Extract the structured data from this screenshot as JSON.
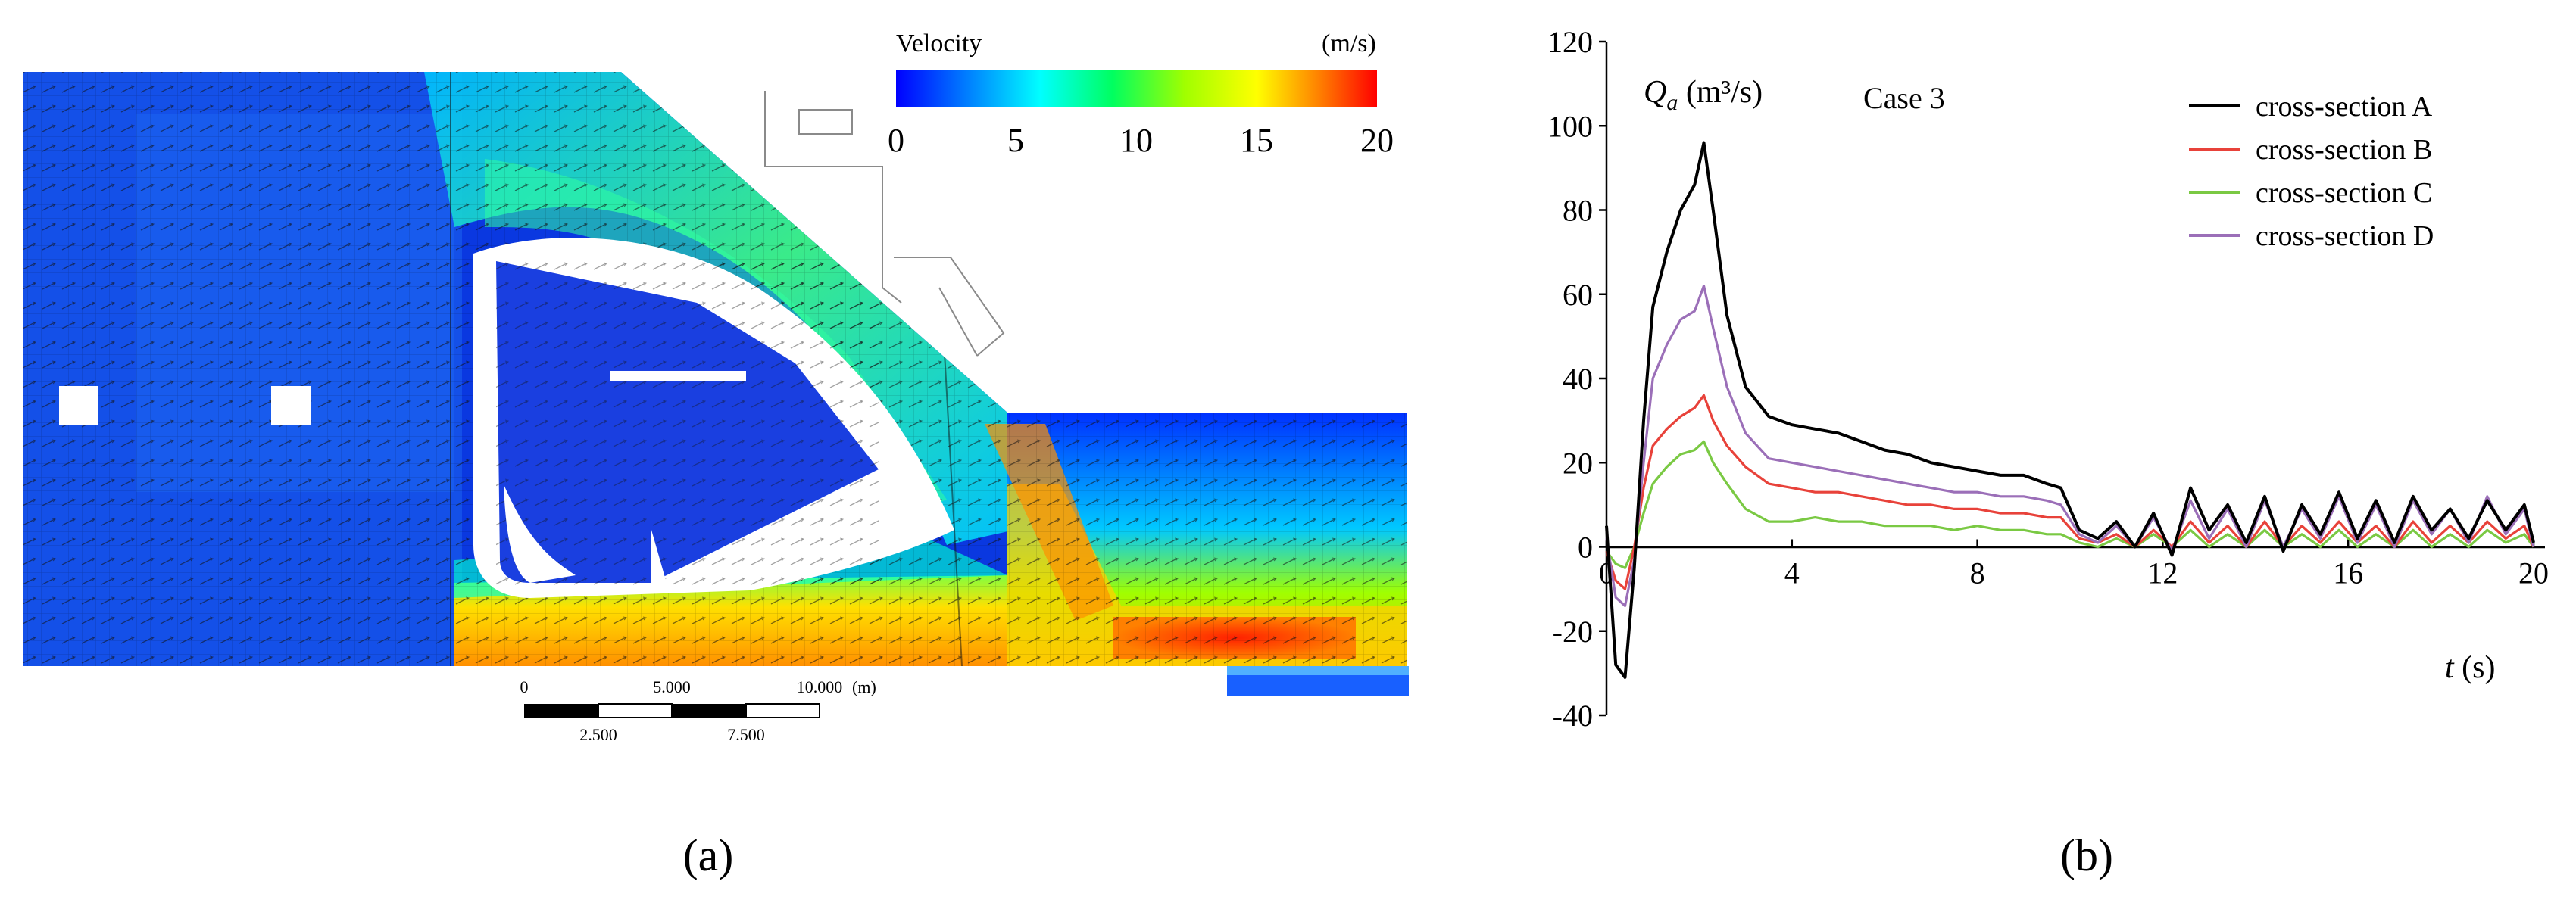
{
  "panel_a": {
    "label": "(a)",
    "colorbar": {
      "title": "Velocity",
      "unit": "(m/s)",
      "ticks": [
        "0",
        "5",
        "10",
        "15",
        "20"
      ],
      "range": [
        0,
        20
      ],
      "colors": [
        "#0000ff",
        "#00a0ff",
        "#00ffff",
        "#00ff60",
        "#a0ff00",
        "#ffff00",
        "#ff8000",
        "#ff0000"
      ]
    },
    "scalebar": {
      "top_labels": [
        "0",
        "5.000",
        "10.000",
        "(m)"
      ],
      "bottom_labels": [
        "2.500",
        "7.500"
      ]
    }
  },
  "panel_b": {
    "label": "(b)",
    "ylabel_text": "Q",
    "ylabel_sub": "a",
    "ylabel_unit": " (m³/s)",
    "case_label": "Case 3",
    "xlabel_text": "t",
    "xlabel_unit": " (s)"
  },
  "chart_data": {
    "type": "line",
    "xlim": [
      0,
      20
    ],
    "ylim": [
      -40,
      120
    ],
    "xticks": [
      0,
      4,
      8,
      12,
      16,
      20
    ],
    "yticks": [
      -40,
      -20,
      0,
      20,
      40,
      60,
      80,
      100,
      120
    ],
    "xlabel": "t (s)",
    "ylabel": "Qa (m³/s)",
    "annotation": "Case 3",
    "legend_position": "top-right",
    "grid": false,
    "series": [
      {
        "name": "cross-section A",
        "color": "#000000",
        "x": [
          0,
          0.2,
          0.4,
          0.6,
          0.8,
          1.0,
          1.3,
          1.6,
          1.9,
          2.1,
          2.3,
          2.6,
          3.0,
          3.5,
          4.0,
          4.5,
          5.0,
          5.5,
          6.0,
          6.5,
          7.0,
          7.5,
          8.0,
          8.5,
          9.0,
          9.5,
          9.8,
          10.2,
          10.6,
          11.0,
          11.4,
          11.8,
          12.2,
          12.6,
          13.0,
          13.4,
          13.8,
          14.2,
          14.6,
          15.0,
          15.4,
          15.8,
          16.2,
          16.6,
          17.0,
          17.4,
          17.8,
          18.2,
          18.6,
          19.0,
          19.4,
          19.8,
          20.0
        ],
        "y": [
          5,
          -28,
          -31,
          -5,
          30,
          57,
          70,
          80,
          86,
          96,
          80,
          55,
          38,
          31,
          29,
          28,
          27,
          25,
          23,
          22,
          20,
          19,
          18,
          17,
          17,
          15,
          14,
          4,
          2,
          6,
          0,
          8,
          -2,
          14,
          4,
          10,
          1,
          12,
          -1,
          10,
          3,
          13,
          2,
          11,
          1,
          12,
          4,
          9,
          2,
          11,
          4,
          10,
          1
        ]
      },
      {
        "name": "cross-section B",
        "color": "#e8423a",
        "x": [
          0,
          0.2,
          0.4,
          0.6,
          0.8,
          1.0,
          1.3,
          1.6,
          1.9,
          2.1,
          2.3,
          2.6,
          3.0,
          3.5,
          4.0,
          4.5,
          5.0,
          5.5,
          6.0,
          6.5,
          7.0,
          7.5,
          8.0,
          8.5,
          9.0,
          9.5,
          9.8,
          10.2,
          10.6,
          11.0,
          11.4,
          11.8,
          12.2,
          12.6,
          13.0,
          13.4,
          13.8,
          14.2,
          14.6,
          15.0,
          15.4,
          15.8,
          16.2,
          16.6,
          17.0,
          17.4,
          17.8,
          18.2,
          18.6,
          19.0,
          19.4,
          19.8,
          20.0
        ],
        "y": [
          -1,
          -8,
          -10,
          0,
          14,
          24,
          28,
          31,
          33,
          36,
          30,
          24,
          19,
          15,
          14,
          13,
          13,
          12,
          11,
          10,
          10,
          9,
          9,
          8,
          8,
          7,
          7,
          2,
          1,
          3,
          0,
          4,
          0,
          6,
          1,
          5,
          0,
          6,
          0,
          5,
          1,
          6,
          1,
          5,
          0,
          6,
          1,
          5,
          1,
          6,
          2,
          5,
          0
        ]
      },
      {
        "name": "cross-section C",
        "color": "#7ac943",
        "x": [
          0,
          0.2,
          0.4,
          0.6,
          0.8,
          1.0,
          1.3,
          1.6,
          1.9,
          2.1,
          2.3,
          2.6,
          3.0,
          3.5,
          4.0,
          4.5,
          5.0,
          5.5,
          6.0,
          6.5,
          7.0,
          7.5,
          8.0,
          8.5,
          9.0,
          9.5,
          9.8,
          10.2,
          10.6,
          11.0,
          11.4,
          11.8,
          12.2,
          12.6,
          13.0,
          13.4,
          13.8,
          14.2,
          14.6,
          15.0,
          15.4,
          15.8,
          16.2,
          16.6,
          17.0,
          17.4,
          17.8,
          18.2,
          18.6,
          19.0,
          19.4,
          19.8,
          20.0
        ],
        "y": [
          -1,
          -4,
          -5,
          0,
          8,
          15,
          19,
          22,
          23,
          25,
          20,
          15,
          9,
          6,
          6,
          7,
          6,
          6,
          5,
          5,
          5,
          4,
          5,
          4,
          4,
          3,
          3,
          1,
          0,
          2,
          0,
          3,
          0,
          4,
          0,
          3,
          0,
          4,
          0,
          3,
          0,
          4,
          0,
          3,
          0,
          4,
          0,
          3,
          0,
          4,
          1,
          3,
          0
        ]
      },
      {
        "name": "cross-section D",
        "color": "#9b6fb8",
        "x": [
          0,
          0.2,
          0.4,
          0.6,
          0.8,
          1.0,
          1.3,
          1.6,
          1.9,
          2.1,
          2.3,
          2.6,
          3.0,
          3.5,
          4.0,
          4.5,
          5.0,
          5.5,
          6.0,
          6.5,
          7.0,
          7.5,
          8.0,
          8.5,
          9.0,
          9.5,
          9.8,
          10.2,
          10.6,
          11.0,
          11.4,
          11.8,
          12.2,
          12.6,
          13.0,
          13.4,
          13.8,
          14.2,
          14.6,
          15.0,
          15.4,
          15.8,
          16.2,
          16.6,
          17.0,
          17.4,
          17.8,
          18.2,
          18.6,
          19.0,
          19.4,
          19.8,
          20.0
        ],
        "y": [
          2,
          -12,
          -14,
          -3,
          20,
          40,
          48,
          54,
          56,
          62,
          52,
          38,
          27,
          21,
          20,
          19,
          18,
          17,
          16,
          15,
          14,
          13,
          13,
          12,
          12,
          11,
          10,
          3,
          1,
          5,
          0,
          7,
          -1,
          11,
          2,
          9,
          0,
          11,
          0,
          9,
          2,
          12,
          1,
          10,
          0,
          11,
          3,
          9,
          1,
          12,
          3,
          9,
          0
        ]
      }
    ]
  }
}
